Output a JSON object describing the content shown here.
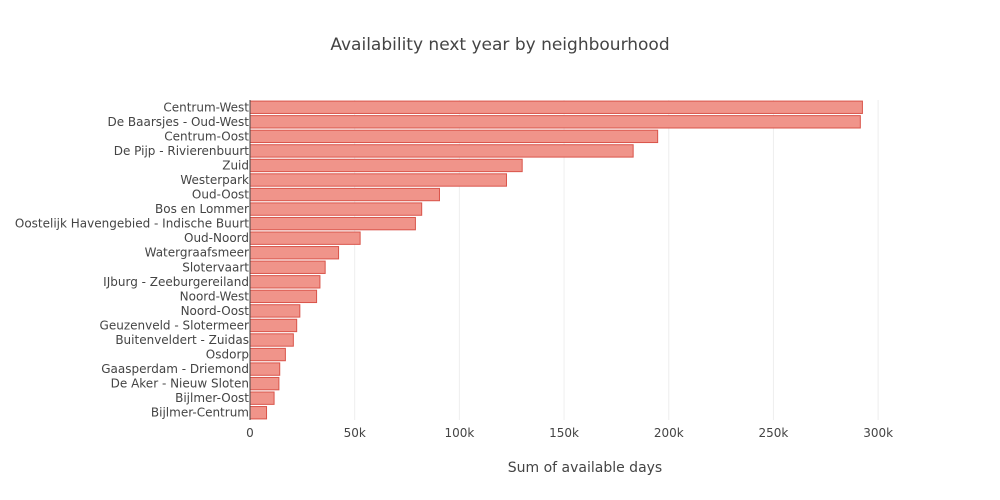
{
  "chart_data": {
    "type": "bar",
    "orientation": "horizontal",
    "title": "Availability next year by neighbourhood",
    "xlabel": "Sum of available days",
    "ylabel": "",
    "xlim": [
      0,
      320000
    ],
    "xticks": [
      {
        "value": 0,
        "label": "0"
      },
      {
        "value": 50000,
        "label": "50k"
      },
      {
        "value": 100000,
        "label": "100k"
      },
      {
        "value": 150000,
        "label": "150k"
      },
      {
        "value": 200000,
        "label": "200k"
      },
      {
        "value": 250000,
        "label": "250k"
      },
      {
        "value": 300000,
        "label": "300k"
      }
    ],
    "grid": true,
    "bar_color": "#f0948a",
    "bar_edge_color": "#d9544a",
    "categories": [
      "Centrum-West",
      "De Baarsjes - Oud-West",
      "Centrum-Oost",
      "De Pijp - Rivierenbuurt",
      "Zuid",
      "Westerpark",
      "Oud-Oost",
      "Bos en Lommer",
      "Oostelijk Havengebied - Indische Buurt",
      "Oud-Noord",
      "Watergraafsmeer",
      "Slotervaart",
      "IJburg - Zeeburgereiland",
      "Noord-West",
      "Noord-Oost",
      "Geuzenveld - Slotermeer",
      "Buitenveldert - Zuidas",
      "Osdorp",
      "Gaasperdam - Driemond",
      "De Aker - Nieuw Sloten",
      "Bijlmer-Oost",
      "Bijlmer-Centrum"
    ],
    "values": [
      292500,
      291500,
      194700,
      183000,
      130000,
      122500,
      90500,
      82000,
      79000,
      52600,
      42300,
      35900,
      33400,
      31800,
      23800,
      22300,
      20700,
      16900,
      14200,
      13800,
      11500,
      7900
    ]
  }
}
